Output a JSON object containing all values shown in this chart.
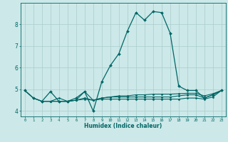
{
  "xlabel": "Humidex (Indice chaleur)",
  "background_color": "#cce8e8",
  "grid_color": "#aacccc",
  "line_color": "#006666",
  "xlim": [
    -0.5,
    23.5
  ],
  "ylim": [
    3.75,
    9.0
  ],
  "yticks": [
    4,
    5,
    6,
    7,
    8
  ],
  "xticks": [
    0,
    1,
    2,
    3,
    4,
    5,
    6,
    7,
    8,
    9,
    10,
    11,
    12,
    13,
    14,
    15,
    16,
    17,
    18,
    19,
    20,
    21,
    22,
    23
  ],
  "series1": [
    [
      0,
      4.95
    ],
    [
      1,
      4.6
    ],
    [
      2,
      4.45
    ],
    [
      3,
      4.9
    ],
    [
      4,
      4.45
    ],
    [
      5,
      4.45
    ],
    [
      6,
      4.6
    ],
    [
      7,
      4.9
    ],
    [
      8,
      4.0
    ],
    [
      9,
      5.35
    ],
    [
      10,
      6.1
    ],
    [
      11,
      6.65
    ],
    [
      12,
      7.7
    ],
    [
      13,
      8.55
    ],
    [
      14,
      8.2
    ],
    [
      15,
      8.6
    ],
    [
      16,
      8.55
    ],
    [
      17,
      7.6
    ],
    [
      18,
      5.15
    ],
    [
      19,
      4.95
    ],
    [
      20,
      4.95
    ],
    [
      21,
      4.6
    ],
    [
      22,
      4.75
    ],
    [
      23,
      4.95
    ]
  ],
  "series2": [
    [
      0,
      4.95
    ],
    [
      1,
      4.6
    ],
    [
      2,
      4.45
    ],
    [
      3,
      4.45
    ],
    [
      4,
      4.45
    ],
    [
      5,
      4.45
    ],
    [
      6,
      4.5
    ],
    [
      7,
      4.6
    ],
    [
      8,
      4.5
    ],
    [
      9,
      4.6
    ],
    [
      10,
      4.65
    ],
    [
      11,
      4.65
    ],
    [
      12,
      4.65
    ],
    [
      13,
      4.65
    ],
    [
      14,
      4.65
    ],
    [
      15,
      4.65
    ],
    [
      16,
      4.65
    ],
    [
      17,
      4.65
    ],
    [
      18,
      4.7
    ],
    [
      19,
      4.75
    ],
    [
      20,
      4.75
    ],
    [
      21,
      4.6
    ],
    [
      22,
      4.75
    ],
    [
      23,
      4.95
    ]
  ],
  "series3": [
    [
      0,
      4.95
    ],
    [
      1,
      4.6
    ],
    [
      2,
      4.45
    ],
    [
      3,
      4.45
    ],
    [
      4,
      4.6
    ],
    [
      5,
      4.45
    ],
    [
      6,
      4.5
    ],
    [
      7,
      4.9
    ],
    [
      8,
      4.5
    ],
    [
      9,
      4.6
    ],
    [
      10,
      4.65
    ],
    [
      11,
      4.7
    ],
    [
      12,
      4.7
    ],
    [
      13,
      4.75
    ],
    [
      14,
      4.75
    ],
    [
      15,
      4.78
    ],
    [
      16,
      4.78
    ],
    [
      17,
      4.78
    ],
    [
      18,
      4.8
    ],
    [
      19,
      4.82
    ],
    [
      20,
      4.82
    ],
    [
      21,
      4.7
    ],
    [
      22,
      4.8
    ],
    [
      23,
      4.95
    ]
  ],
  "series4": [
    [
      2,
      4.45
    ],
    [
      3,
      4.45
    ],
    [
      4,
      4.45
    ],
    [
      5,
      4.45
    ],
    [
      6,
      4.5
    ],
    [
      7,
      4.55
    ],
    [
      8,
      4.5
    ],
    [
      9,
      4.55
    ],
    [
      10,
      4.55
    ],
    [
      11,
      4.55
    ],
    [
      12,
      4.55
    ],
    [
      13,
      4.55
    ],
    [
      14,
      4.55
    ],
    [
      15,
      4.55
    ],
    [
      16,
      4.55
    ],
    [
      17,
      4.55
    ],
    [
      18,
      4.55
    ],
    [
      19,
      4.6
    ],
    [
      20,
      4.6
    ],
    [
      21,
      4.55
    ],
    [
      22,
      4.65
    ],
    [
      23,
      4.95
    ]
  ]
}
